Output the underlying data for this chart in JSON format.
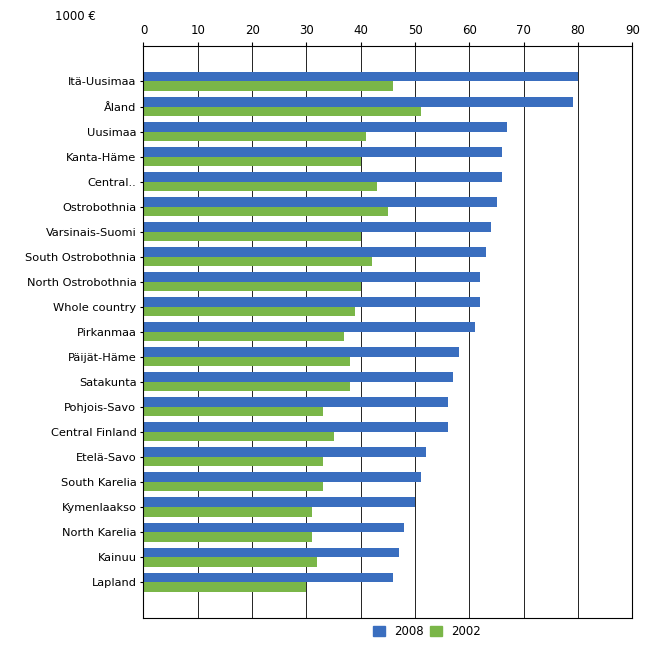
{
  "regions": [
    "Itä-Uusimaa",
    "Åland",
    "Uusimaa",
    "Kanta-Häme",
    "Central..",
    "Ostrobothnia",
    "Varsinais-Suomi",
    "South Ostrobothnia",
    "North Ostrobothnia",
    "Whole country",
    "Pirkanmaa",
    "Päijät-Häme",
    "Satakunta",
    "Pohjois-Savo",
    "Central Finland",
    "Etelä-Savo",
    "South Karelia",
    "Kymenlaakso",
    "North Karelia",
    "Kainuu",
    "Lapland"
  ],
  "values_2008": [
    80,
    79,
    67,
    66,
    66,
    65,
    64,
    63,
    62,
    62,
    61,
    58,
    57,
    56,
    56,
    52,
    51,
    50,
    48,
    47,
    46
  ],
  "values_2002": [
    46,
    51,
    41,
    40,
    43,
    45,
    40,
    42,
    40,
    39,
    37,
    38,
    38,
    33,
    35,
    33,
    33,
    31,
    31,
    32,
    30
  ],
  "color_2008": "#3A6EBF",
  "color_2002": "#7AB648",
  "xlabel": "1000 €",
  "xlim": [
    0,
    90
  ],
  "xticks": [
    0,
    10,
    20,
    30,
    40,
    50,
    60,
    70,
    80,
    90
  ],
  "legend_labels": [
    "2008",
    "2002"
  ],
  "bar_height": 0.38,
  "background_color": "#ffffff",
  "grid_color": "#000000"
}
